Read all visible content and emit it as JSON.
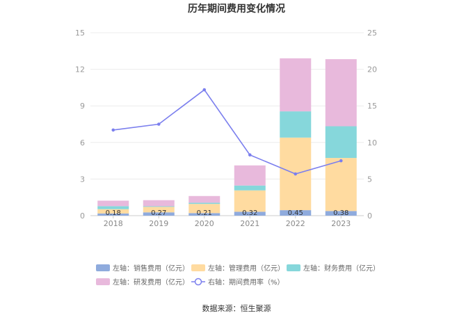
{
  "chart_data": {
    "type": "bar",
    "title": "历年期间费用变化情况",
    "categories": [
      "2018",
      "2019",
      "2020",
      "2021",
      "2022",
      "2023"
    ],
    "left_axis": {
      "range": [
        0,
        15
      ],
      "ticks": [
        "0",
        "3",
        "6",
        "9",
        "12",
        "15"
      ]
    },
    "right_axis": {
      "range": [
        0,
        25
      ],
      "ticks": [
        "0",
        "5",
        "10",
        "15",
        "20",
        "25"
      ]
    },
    "series": [
      {
        "name": "左轴：销售费用（亿元）",
        "axis": "left",
        "kind": "bar",
        "color": "#8fabdd",
        "values": [
          0.18,
          0.27,
          0.21,
          0.32,
          0.45,
          0.38
        ]
      },
      {
        "name": "左轴：管理费用（亿元）",
        "axis": "left",
        "kind": "bar",
        "color": "#ffdba0",
        "values": [
          0.35,
          0.45,
          0.75,
          1.75,
          5.95,
          4.35
        ]
      },
      {
        "name": "左轴：财务费用（亿元）",
        "axis": "left",
        "kind": "bar",
        "color": "#86d7db",
        "values": [
          0.25,
          0.05,
          0.1,
          0.4,
          2.15,
          2.6
        ]
      },
      {
        "name": "左轴：研发费用（亿元）",
        "axis": "left",
        "kind": "bar",
        "color": "#e8b9dc",
        "values": [
          0.45,
          0.5,
          0.55,
          1.65,
          4.35,
          5.5
        ]
      },
      {
        "name": "右轴：期间费用率（%）",
        "axis": "right",
        "kind": "line",
        "color": "#7b7fee",
        "values": [
          11.7,
          12.5,
          17.2,
          8.3,
          5.7,
          7.5
        ]
      }
    ],
    "data_labels": [
      "0.18",
      "0.27",
      "0.21",
      "0.32",
      "0.45",
      "0.38"
    ],
    "legend_position": "bottom",
    "grid": true
  },
  "source": "数据来源：恒生聚源"
}
